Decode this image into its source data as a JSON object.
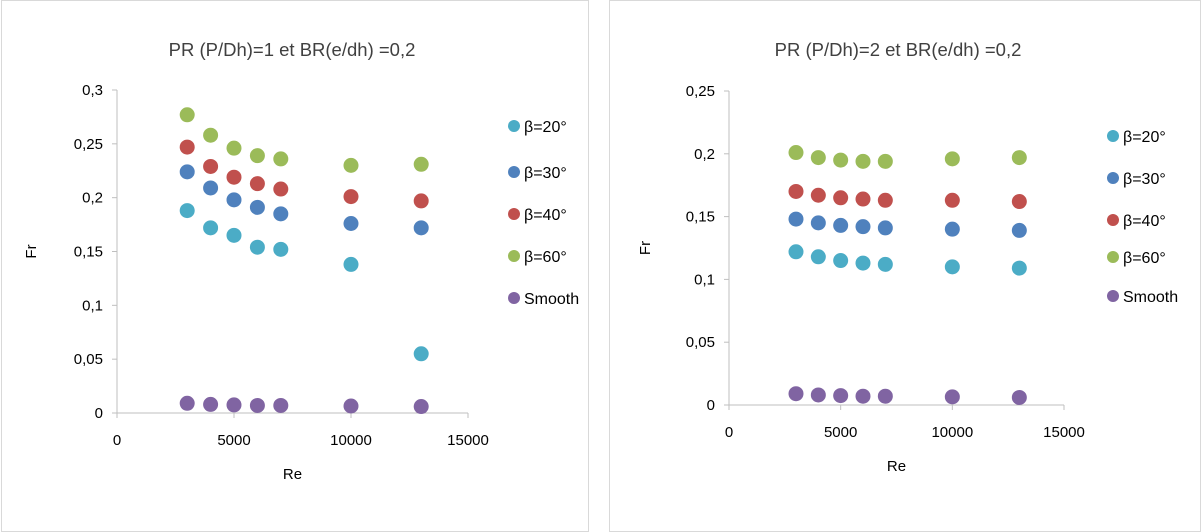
{
  "chart_data": [
    {
      "type": "scatter",
      "title": "PR (P/Dh)=1  et BR(e/dh) =0,2",
      "xlabel": "Re",
      "ylabel": "Fr",
      "xlim": [
        0,
        15000
      ],
      "ylim": [
        0,
        0.3
      ],
      "x_ticks": [
        "0",
        "5000",
        "10000",
        "15000"
      ],
      "y_ticks": [
        "0",
        "0,05",
        "0,1",
        "0,15",
        "0,2",
        "0,25",
        "0,3"
      ],
      "grid": false,
      "legend_position": "right",
      "series": [
        {
          "name": "β=20°",
          "color": "#4bacc6",
          "x": [
            3000,
            4000,
            5000,
            6000,
            7000,
            10000,
            13000
          ],
          "y": [
            0.188,
            0.172,
            0.165,
            0.154,
            0.152,
            0.138,
            0.055
          ]
        },
        {
          "name": "β=30°",
          "color": "#4f81bd",
          "x": [
            3000,
            4000,
            5000,
            6000,
            7000,
            10000,
            13000
          ],
          "y": [
            0.224,
            0.209,
            0.198,
            0.191,
            0.185,
            0.176,
            0.172
          ]
        },
        {
          "name": "β=40°",
          "color": "#c0504d",
          "x": [
            3000,
            4000,
            5000,
            6000,
            7000,
            10000,
            13000
          ],
          "y": [
            0.247,
            0.229,
            0.219,
            0.213,
            0.208,
            0.201,
            0.197
          ]
        },
        {
          "name": "β=60°",
          "color": "#9bbb59",
          "x": [
            3000,
            4000,
            5000,
            6000,
            7000,
            10000,
            13000
          ],
          "y": [
            0.277,
            0.258,
            0.246,
            0.239,
            0.236,
            0.23,
            0.231
          ]
        },
        {
          "name": "Smooth",
          "color": "#8064a2",
          "x": [
            3000,
            4000,
            5000,
            6000,
            7000,
            10000,
            13000
          ],
          "y": [
            0.009,
            0.008,
            0.0075,
            0.007,
            0.007,
            0.0065,
            0.006
          ]
        }
      ]
    },
    {
      "type": "scatter",
      "title": "PR (P/Dh)=2  et BR(e/dh) =0,2",
      "xlabel": "Re",
      "ylabel": "Fr",
      "xlim": [
        0,
        15000
      ],
      "ylim": [
        0,
        0.25
      ],
      "x_ticks": [
        "0",
        "5000",
        "10000",
        "15000"
      ],
      "y_ticks": [
        "0",
        "0,05",
        "0,1",
        "0,15",
        "0,2",
        "0,25"
      ],
      "grid": false,
      "legend_position": "right",
      "series": [
        {
          "name": "β=20°",
          "color": "#4bacc6",
          "x": [
            3000,
            4000,
            5000,
            6000,
            7000,
            10000,
            13000
          ],
          "y": [
            0.122,
            0.118,
            0.115,
            0.113,
            0.112,
            0.11,
            0.109
          ]
        },
        {
          "name": "β=30°",
          "color": "#4f81bd",
          "x": [
            3000,
            4000,
            5000,
            6000,
            7000,
            10000,
            13000
          ],
          "y": [
            0.148,
            0.145,
            0.143,
            0.142,
            0.141,
            0.14,
            0.139
          ]
        },
        {
          "name": "β=40°",
          "color": "#c0504d",
          "x": [
            3000,
            4000,
            5000,
            6000,
            7000,
            10000,
            13000
          ],
          "y": [
            0.17,
            0.167,
            0.165,
            0.164,
            0.163,
            0.163,
            0.162
          ]
        },
        {
          "name": "β=60°",
          "color": "#9bbb59",
          "x": [
            3000,
            4000,
            5000,
            6000,
            7000,
            10000,
            13000
          ],
          "y": [
            0.201,
            0.197,
            0.195,
            0.194,
            0.194,
            0.196,
            0.197
          ]
        },
        {
          "name": "Smooth",
          "color": "#8064a2",
          "x": [
            3000,
            4000,
            5000,
            6000,
            7000,
            10000,
            13000
          ],
          "y": [
            0.009,
            0.008,
            0.0075,
            0.007,
            0.007,
            0.0065,
            0.006
          ]
        }
      ]
    }
  ]
}
